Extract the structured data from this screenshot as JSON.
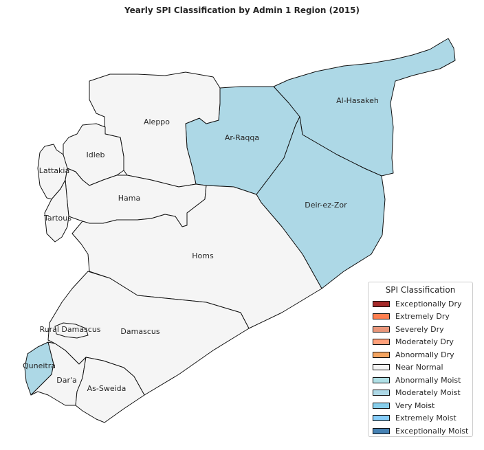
{
  "title": "Yearly SPI Classification by Admin 1 Region (2015)",
  "legend": {
    "title": "SPI Classification",
    "items": [
      {
        "label": "Exceptionally Dry",
        "color": "#a52a2a"
      },
      {
        "label": "Extremely Dry",
        "color": "#ff7f50"
      },
      {
        "label": "Severely Dry",
        "color": "#e9967a"
      },
      {
        "label": "Moderately Dry",
        "color": "#ffa07a"
      },
      {
        "label": "Abnormally Dry",
        "color": "#f4a460"
      },
      {
        "label": "Near Normal",
        "color": "#f5f5f5"
      },
      {
        "label": "Abnormally Moist",
        "color": "#b0e0e6"
      },
      {
        "label": "Moderately Moist",
        "color": "#add8e6"
      },
      {
        "label": "Very Moist",
        "color": "#87ceeb"
      },
      {
        "label": "Extremely Moist",
        "color": "#87cefa"
      },
      {
        "label": "Exceptionally Moist",
        "color": "#4682b4"
      }
    ]
  },
  "regions": [
    {
      "name": "Al-Hasakeh",
      "class": "Moderately Moist"
    },
    {
      "name": "Ar-Raqqa",
      "class": "Moderately Moist"
    },
    {
      "name": "Deir-ez-Zor",
      "class": "Moderately Moist"
    },
    {
      "name": "Aleppo",
      "class": "Near Normal"
    },
    {
      "name": "Idleb",
      "class": "Near Normal"
    },
    {
      "name": "Lattakia",
      "class": "Near Normal"
    },
    {
      "name": "Hama",
      "class": "Near Normal"
    },
    {
      "name": "Tartous",
      "class": "Near Normal"
    },
    {
      "name": "Homs",
      "class": "Near Normal"
    },
    {
      "name": "Damascus",
      "class": "Near Normal"
    },
    {
      "name": "Rural Damascus",
      "class": "Near Normal"
    },
    {
      "name": "Quneitra",
      "class": "Moderately Moist"
    },
    {
      "name": "Dar'a",
      "class": "Near Normal"
    },
    {
      "name": "As-Sweida",
      "class": "Near Normal"
    }
  ]
}
